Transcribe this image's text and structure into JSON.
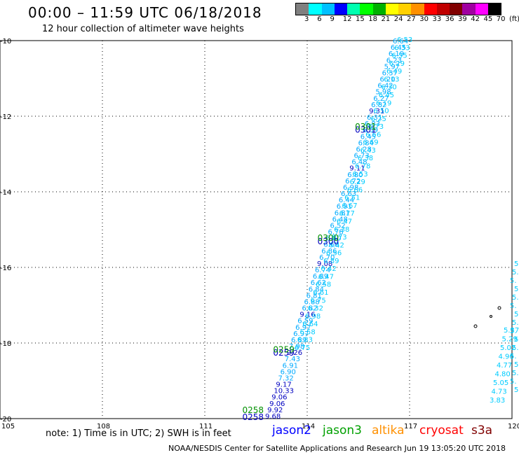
{
  "title": "00:00 – 11:59 UTC 06/18/2018",
  "subtitle": "12 hour collection of altimeter wave heights",
  "scale": {
    "colors": [
      "#808080",
      "#00ffff",
      "#00c0ff",
      "#0000ff",
      "#00ffb0",
      "#00ff00",
      "#00b000",
      "#ffff00",
      "#ffd000",
      "#ff9000",
      "#ff0000",
      "#c00000",
      "#800000",
      "#a000a0",
      "#ff00ff",
      "#000000"
    ],
    "labels": [
      "3",
      "6",
      "9",
      "12",
      "15",
      "18",
      "21",
      "24",
      "27",
      "30",
      "33",
      "36",
      "39",
      "42",
      "45",
      "70",
      "(ft)"
    ]
  },
  "axes": {
    "x_labels": [
      "105",
      "108",
      "111",
      "114",
      "117",
      "120"
    ],
    "y_labels": [
      "-10",
      "-12",
      "-14",
      "-16",
      "-18",
      "-20"
    ]
  },
  "legend": [
    {
      "name": "jason2",
      "color": "#0000ff"
    },
    {
      "name": "jason3",
      "color": "#00a000"
    },
    {
      "name": "altika",
      "color": "#ff9000"
    },
    {
      "name": "cryosat",
      "color": "#ff0000"
    },
    {
      "name": "s3a",
      "color": "#800000"
    }
  ],
  "note": "note: 1) Time is in UTC; 2) SWH is in feet",
  "credit": "NOAA/NESDIS Center for Satellite Applications and Research    Jun 19 13:05:20 UTC 2018",
  "track_west": [
    "6.64",
    "6.45",
    "6.19",
    "6.23",
    "5.97",
    "6.37",
    "6.20",
    "6.42",
    "5.98",
    "6.27",
    "6.82",
    "9.31",
    "6.31",
    "6.83",
    "6.39",
    "6.45",
    "6.84",
    "6.28",
    "6.73",
    "6.48",
    "9.11",
    "6.80",
    "6.72",
    "6.98",
    "6.63",
    "6.44",
    "6.91",
    "6.81",
    "6.48",
    "6.52",
    "6.78",
    "6.80",
    "6.68",
    "6.86",
    "6.70",
    "9.08",
    "6.74",
    "6.89",
    "6.62",
    "6.84",
    "6.81",
    "6.88",
    "6.82",
    "9.16",
    "6.59",
    "6.97",
    "6.97",
    "6.89",
    "7.98",
    "9.26",
    "7.43",
    "6.91",
    "6.90",
    "7.32",
    "9.17",
    "10.33",
    "9.06",
    "9.06",
    "9.92",
    "9.68"
  ],
  "track_east": [
    "6.53",
    "6.33",
    "6.55",
    "6.29",
    "6.49",
    "6.13",
    "6.30",
    "6.45",
    "6.19",
    "6.50",
    "6.25",
    "6.73",
    "6.56",
    "6.69",
    "6.43",
    "6.38",
    "6.78",
    "6.53",
    "6.29",
    "6.66",
    "6.51",
    "6.67",
    "6.77",
    "6.47",
    "6.38",
    "6.73",
    "6.42",
    "6.56",
    "6.89",
    "6.42",
    "6.47",
    "6.58",
    "6.61",
    "6.75",
    "6.32",
    "6.98",
    "6.64",
    "6.58",
    "6.83",
    "6.75"
  ],
  "time_labels": {
    "jason3": [
      {
        "t": "0301",
        "lat": -12.35,
        "lon": 115.4
      },
      {
        "t": "0300",
        "lat": -15.3,
        "lon": 114.3
      },
      {
        "t": "0259",
        "lat": -18.25,
        "lon": 113.0
      },
      {
        "t": "0258",
        "lat": -19.85,
        "lon": 112.1
      }
    ],
    "jason2": [
      {
        "t": "0301",
        "lat": -12.4,
        "lon": 115.4
      },
      {
        "t": "0300",
        "lat": -15.35,
        "lon": 114.3
      },
      {
        "t": "0259",
        "lat": -18.3,
        "lon": 113.0
      },
      {
        "t": "0258",
        "lat": -20.0,
        "lon": 112.1
      }
    ]
  },
  "coast_labels": [
    "5.",
    "5.",
    "5.",
    "5.",
    "5.",
    "5.",
    "5.",
    "5.",
    "5.",
    "5.",
    "5.",
    "5.",
    "5.",
    "5.",
    "5.",
    "5."
  ],
  "east_track": [
    "5.37",
    "5.29",
    "5.02",
    "4.96",
    "4.77",
    "4.80",
    "5.05",
    "4.73",
    "3.83"
  ]
}
